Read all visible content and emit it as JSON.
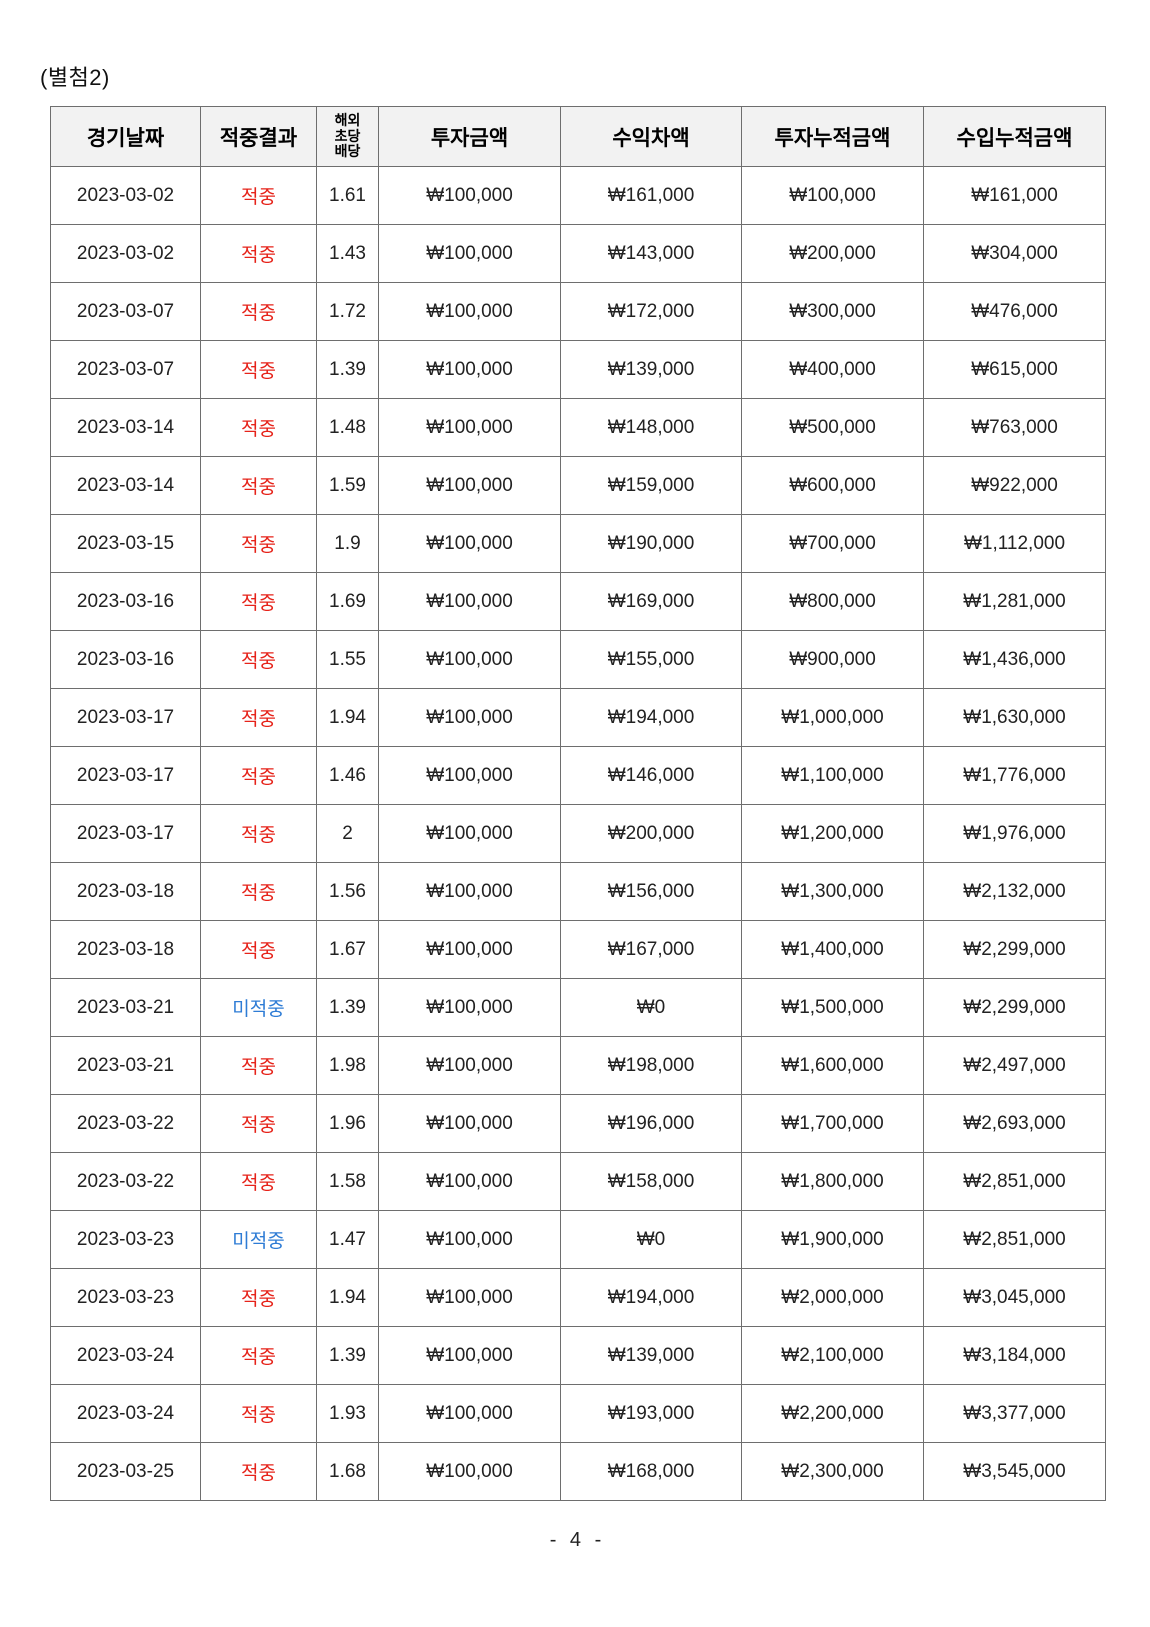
{
  "page": {
    "attachment_label": "(별첨2)",
    "page_number": "- 4 -"
  },
  "colors": {
    "hit_text": "#e6231a",
    "miss_text": "#2e7cd5",
    "header_background": "#f2f2f2",
    "table_border": "#6e6e6e"
  },
  "table": {
    "headers": {
      "game_date": "경기날짜",
      "hit_result": "적중결과",
      "overseas_odds": "해외\n초당\n배당",
      "investment": "투자금액",
      "profit": "수익차액",
      "cumulative_investment": "투자누적금액",
      "cumulative_income": "수입누적금액"
    },
    "rows": [
      {
        "date": "2023-03-02",
        "result": "적중",
        "result_type": "hit",
        "odds": "1.61",
        "investment": "₩100,000",
        "profit": "₩161,000",
        "cumulative_investment": "₩100,000",
        "cumulative_income": "₩161,000"
      },
      {
        "date": "2023-03-02",
        "result": "적중",
        "result_type": "hit",
        "odds": "1.43",
        "investment": "₩100,000",
        "profit": "₩143,000",
        "cumulative_investment": "₩200,000",
        "cumulative_income": "₩304,000"
      },
      {
        "date": "2023-03-07",
        "result": "적중",
        "result_type": "hit",
        "odds": "1.72",
        "investment": "₩100,000",
        "profit": "₩172,000",
        "cumulative_investment": "₩300,000",
        "cumulative_income": "₩476,000"
      },
      {
        "date": "2023-03-07",
        "result": "적중",
        "result_type": "hit",
        "odds": "1.39",
        "investment": "₩100,000",
        "profit": "₩139,000",
        "cumulative_investment": "₩400,000",
        "cumulative_income": "₩615,000"
      },
      {
        "date": "2023-03-14",
        "result": "적중",
        "result_type": "hit",
        "odds": "1.48",
        "investment": "₩100,000",
        "profit": "₩148,000",
        "cumulative_investment": "₩500,000",
        "cumulative_income": "₩763,000"
      },
      {
        "date": "2023-03-14",
        "result": "적중",
        "result_type": "hit",
        "odds": "1.59",
        "investment": "₩100,000",
        "profit": "₩159,000",
        "cumulative_investment": "₩600,000",
        "cumulative_income": "₩922,000"
      },
      {
        "date": "2023-03-15",
        "result": "적중",
        "result_type": "hit",
        "odds": "1.9",
        "investment": "₩100,000",
        "profit": "₩190,000",
        "cumulative_investment": "₩700,000",
        "cumulative_income": "₩1,112,000"
      },
      {
        "date": "2023-03-16",
        "result": "적중",
        "result_type": "hit",
        "odds": "1.69",
        "investment": "₩100,000",
        "profit": "₩169,000",
        "cumulative_investment": "₩800,000",
        "cumulative_income": "₩1,281,000"
      },
      {
        "date": "2023-03-16",
        "result": "적중",
        "result_type": "hit",
        "odds": "1.55",
        "investment": "₩100,000",
        "profit": "₩155,000",
        "cumulative_investment": "₩900,000",
        "cumulative_income": "₩1,436,000"
      },
      {
        "date": "2023-03-17",
        "result": "적중",
        "result_type": "hit",
        "odds": "1.94",
        "investment": "₩100,000",
        "profit": "₩194,000",
        "cumulative_investment": "₩1,000,000",
        "cumulative_income": "₩1,630,000"
      },
      {
        "date": "2023-03-17",
        "result": "적중",
        "result_type": "hit",
        "odds": "1.46",
        "investment": "₩100,000",
        "profit": "₩146,000",
        "cumulative_investment": "₩1,100,000",
        "cumulative_income": "₩1,776,000"
      },
      {
        "date": "2023-03-17",
        "result": "적중",
        "result_type": "hit",
        "odds": "2",
        "investment": "₩100,000",
        "profit": "₩200,000",
        "cumulative_investment": "₩1,200,000",
        "cumulative_income": "₩1,976,000"
      },
      {
        "date": "2023-03-18",
        "result": "적중",
        "result_type": "hit",
        "odds": "1.56",
        "investment": "₩100,000",
        "profit": "₩156,000",
        "cumulative_investment": "₩1,300,000",
        "cumulative_income": "₩2,132,000"
      },
      {
        "date": "2023-03-18",
        "result": "적중",
        "result_type": "hit",
        "odds": "1.67",
        "investment": "₩100,000",
        "profit": "₩167,000",
        "cumulative_investment": "₩1,400,000",
        "cumulative_income": "₩2,299,000"
      },
      {
        "date": "2023-03-21",
        "result": "미적중",
        "result_type": "miss",
        "odds": "1.39",
        "investment": "₩100,000",
        "profit": "₩0",
        "cumulative_investment": "₩1,500,000",
        "cumulative_income": "₩2,299,000"
      },
      {
        "date": "2023-03-21",
        "result": "적중",
        "result_type": "hit",
        "odds": "1.98",
        "investment": "₩100,000",
        "profit": "₩198,000",
        "cumulative_investment": "₩1,600,000",
        "cumulative_income": "₩2,497,000"
      },
      {
        "date": "2023-03-22",
        "result": "적중",
        "result_type": "hit",
        "odds": "1.96",
        "investment": "₩100,000",
        "profit": "₩196,000",
        "cumulative_investment": "₩1,700,000",
        "cumulative_income": "₩2,693,000"
      },
      {
        "date": "2023-03-22",
        "result": "적중",
        "result_type": "hit",
        "odds": "1.58",
        "investment": "₩100,000",
        "profit": "₩158,000",
        "cumulative_investment": "₩1,800,000",
        "cumulative_income": "₩2,851,000"
      },
      {
        "date": "2023-03-23",
        "result": "미적중",
        "result_type": "miss",
        "odds": "1.47",
        "investment": "₩100,000",
        "profit": "₩0",
        "cumulative_investment": "₩1,900,000",
        "cumulative_income": "₩2,851,000"
      },
      {
        "date": "2023-03-23",
        "result": "적중",
        "result_type": "hit",
        "odds": "1.94",
        "investment": "₩100,000",
        "profit": "₩194,000",
        "cumulative_investment": "₩2,000,000",
        "cumulative_income": "₩3,045,000"
      },
      {
        "date": "2023-03-24",
        "result": "적중",
        "result_type": "hit",
        "odds": "1.39",
        "investment": "₩100,000",
        "profit": "₩139,000",
        "cumulative_investment": "₩2,100,000",
        "cumulative_income": "₩3,184,000"
      },
      {
        "date": "2023-03-24",
        "result": "적중",
        "result_type": "hit",
        "odds": "1.93",
        "investment": "₩100,000",
        "profit": "₩193,000",
        "cumulative_investment": "₩2,200,000",
        "cumulative_income": "₩3,377,000"
      },
      {
        "date": "2023-03-25",
        "result": "적중",
        "result_type": "hit",
        "odds": "1.68",
        "investment": "₩100,000",
        "profit": "₩168,000",
        "cumulative_investment": "₩2,300,000",
        "cumulative_income": "₩3,545,000"
      }
    ]
  }
}
